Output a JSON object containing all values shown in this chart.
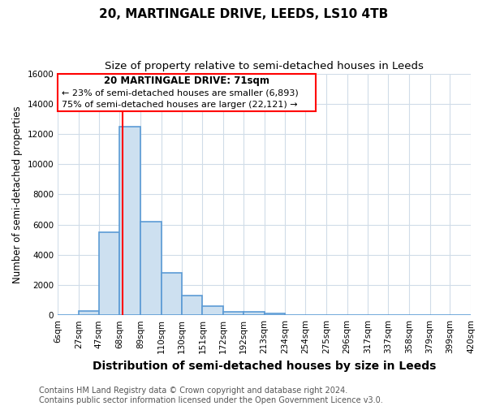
{
  "title": "20, MARTINGALE DRIVE, LEEDS, LS10 4TB",
  "subtitle": "Size of property relative to semi-detached houses in Leeds",
  "xlabel": "Distribution of semi-detached houses by size in Leeds",
  "ylabel": "Number of semi-detached properties",
  "bin_labels": [
    "6sqm",
    "27sqm",
    "47sqm",
    "68sqm",
    "89sqm",
    "110sqm",
    "130sqm",
    "151sqm",
    "172sqm",
    "192sqm",
    "213sqm",
    "234sqm",
    "254sqm",
    "275sqm",
    "296sqm",
    "317sqm",
    "337sqm",
    "358sqm",
    "379sqm",
    "399sqm",
    "420sqm"
  ],
  "bar_heights": [
    0,
    300,
    5500,
    12500,
    6200,
    2800,
    1300,
    600,
    250,
    200,
    100,
    0,
    0,
    0,
    0,
    0,
    0,
    0,
    0,
    0
  ],
  "bar_color": "#cde0f0",
  "bar_edge_color": "#5b9bd5",
  "bar_edge_width": 1.2,
  "property_size": 71,
  "bin_edges": [
    6,
    27,
    47,
    68,
    89,
    110,
    130,
    151,
    172,
    192,
    213,
    234,
    254,
    275,
    296,
    317,
    337,
    358,
    379,
    399,
    420
  ],
  "annotation_text_line1": "20 MARTINGALE DRIVE: 71sqm",
  "annotation_text_line2": "← 23% of semi-detached houses are smaller (6,893)",
  "annotation_text_line3": "75% of semi-detached houses are larger (22,121) →",
  "ylim": [
    0,
    16000
  ],
  "yticks": [
    0,
    2000,
    4000,
    6000,
    8000,
    10000,
    12000,
    14000,
    16000
  ],
  "footer_line1": "Contains HM Land Registry data © Crown copyright and database right 2024.",
  "footer_line2": "Contains public sector information licensed under the Open Government Licence v3.0.",
  "background_color": "#ffffff",
  "grid_color": "#d0dce8",
  "title_fontsize": 11,
  "subtitle_fontsize": 9.5,
  "xlabel_fontsize": 10,
  "ylabel_fontsize": 8.5,
  "tick_fontsize": 7.5,
  "annotation_fontsize": 8.5,
  "footer_fontsize": 7
}
